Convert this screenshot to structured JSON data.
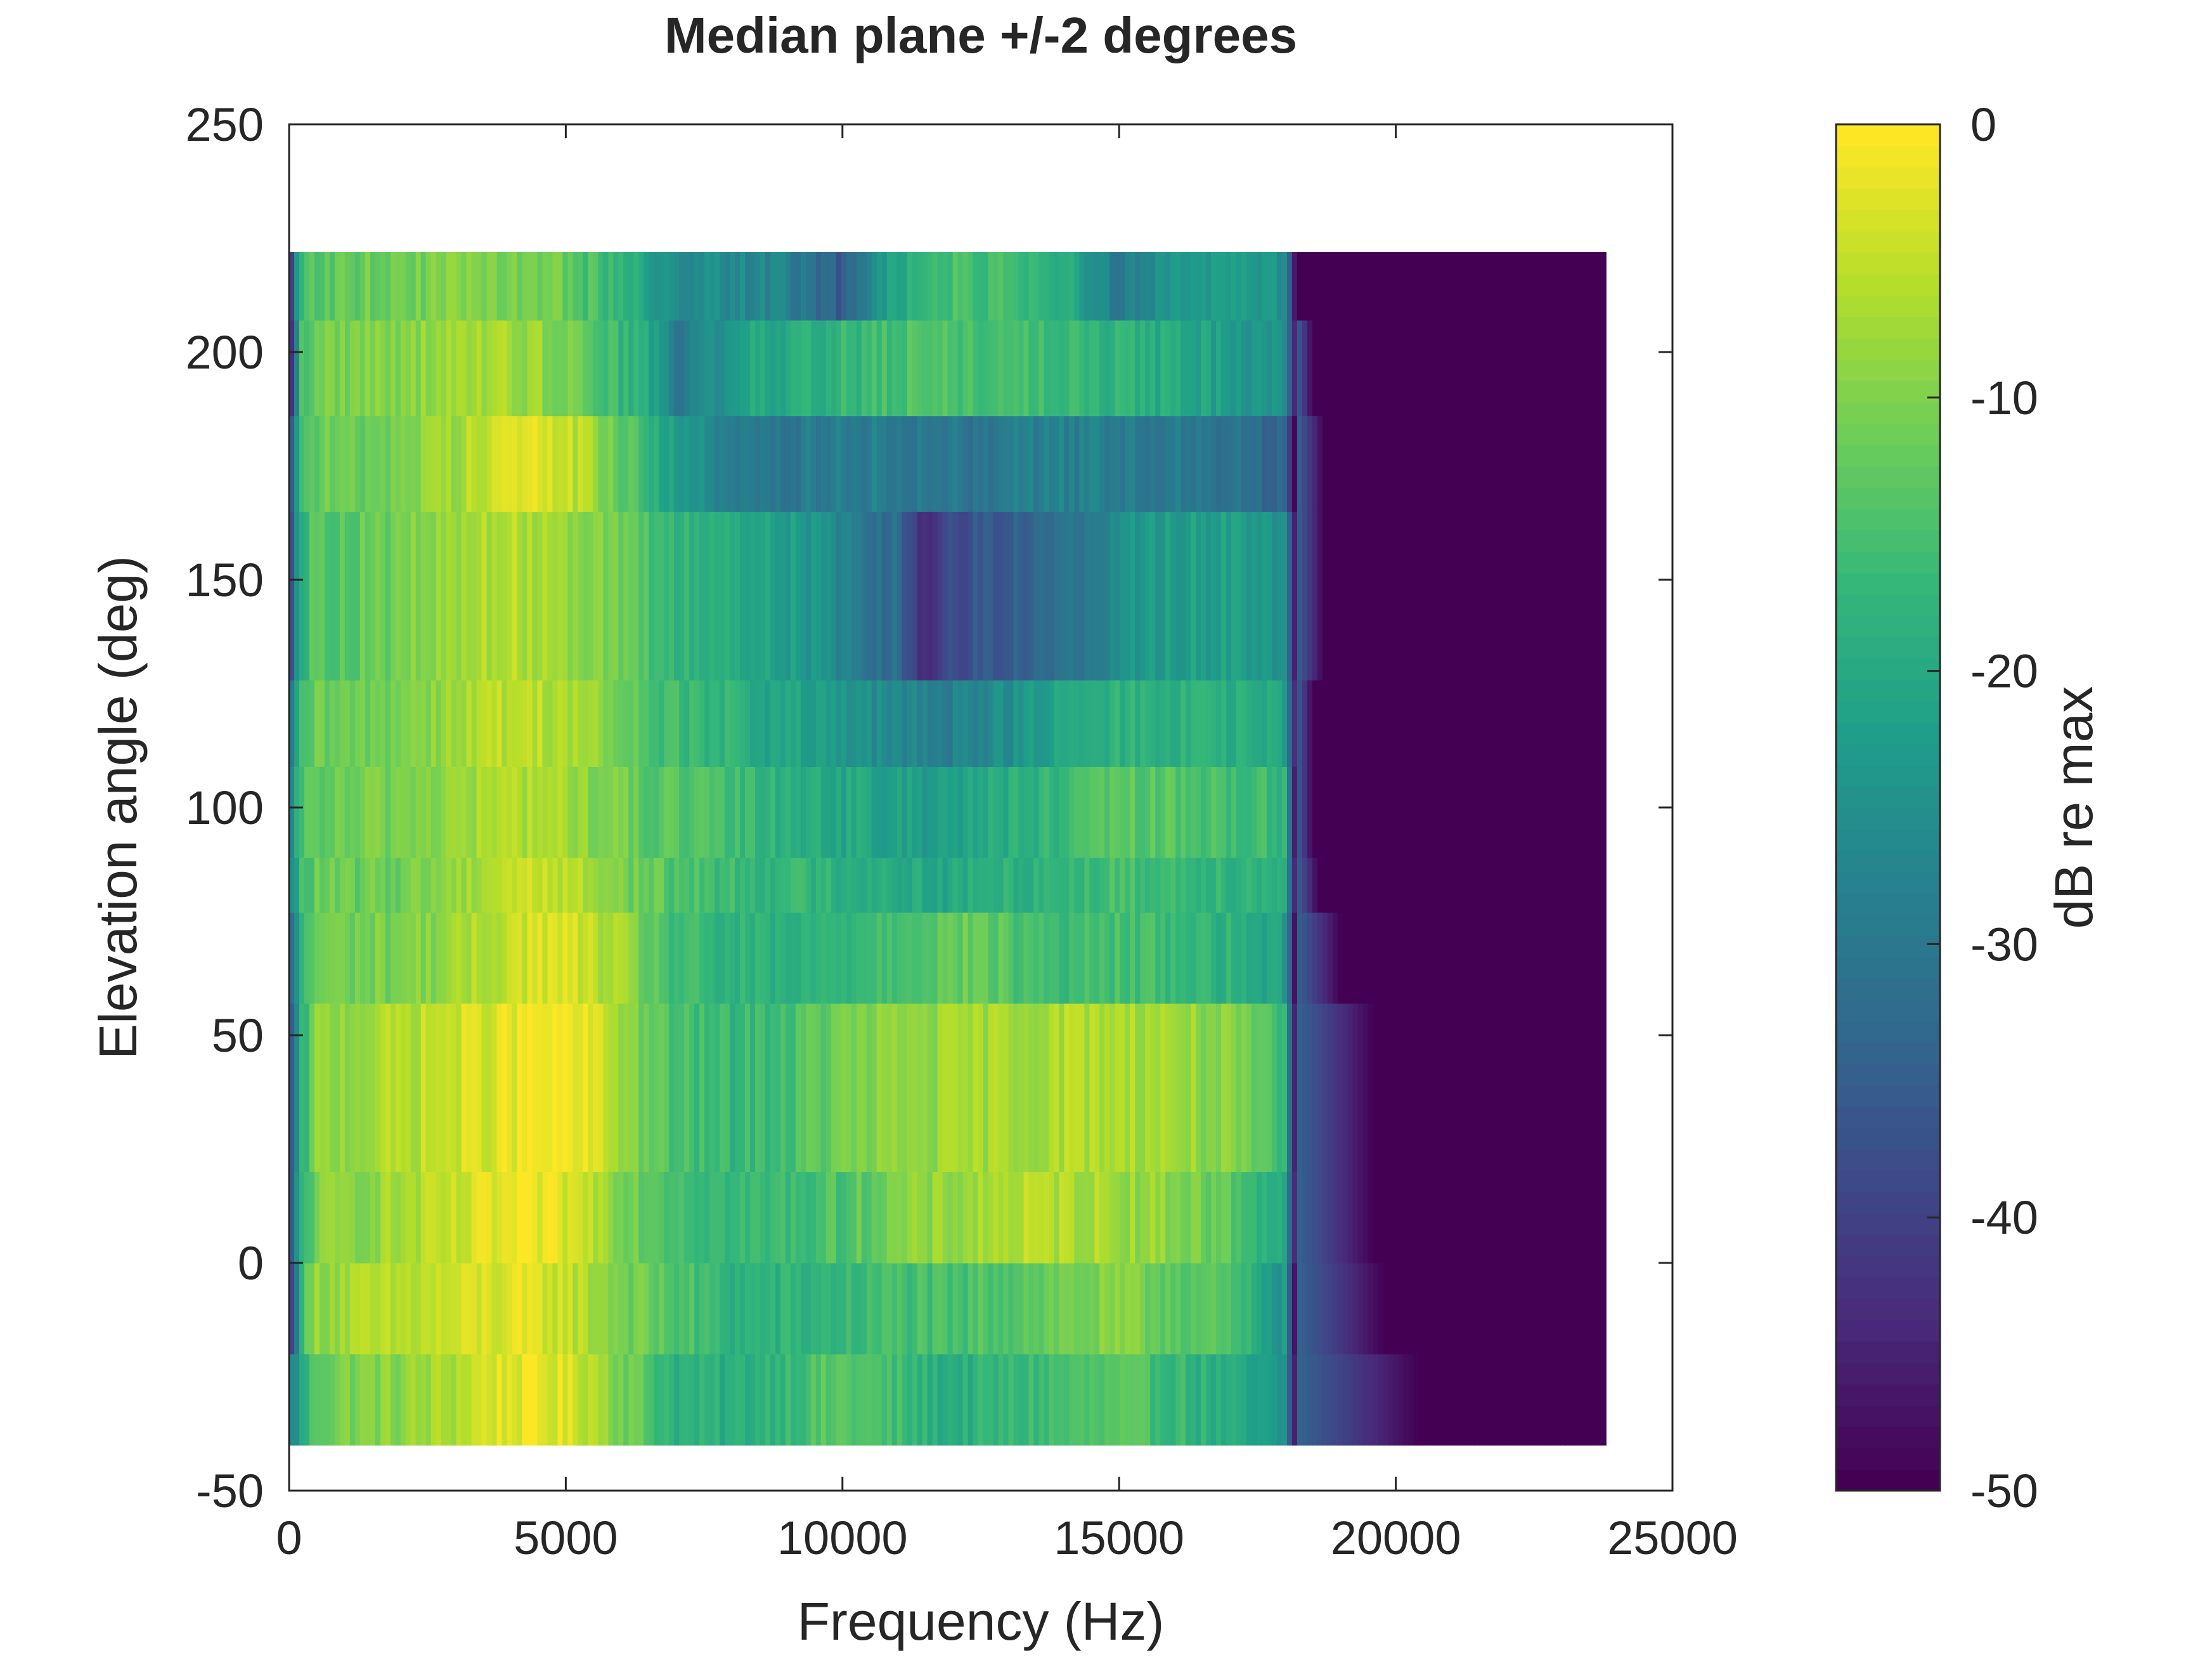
{
  "chart_data": {
    "type": "heatmap",
    "title": "Median plane +/-2 degrees",
    "xlabel": "Frequency (Hz)",
    "ylabel": "Elevation angle (deg)",
    "xlim": [
      0,
      25000
    ],
    "ylim": [
      -50,
      250
    ],
    "xticks": [
      0,
      5000,
      10000,
      15000,
      20000,
      25000
    ],
    "xtick_labels": [
      "0",
      "5000",
      "10000",
      "15000",
      "20000",
      "25000"
    ],
    "yticks": [
      -50,
      0,
      50,
      100,
      150,
      200,
      250
    ],
    "ytick_labels": [
      "-50",
      "0",
      "50",
      "100",
      "150",
      "200",
      "250"
    ],
    "colormap": "viridis",
    "colorbar": {
      "label": "dB re max",
      "range": [
        -50,
        0
      ],
      "ticks": [
        0,
        -10,
        -20,
        -30,
        -40,
        -50
      ],
      "tick_labels": [
        "0",
        "-10",
        "-20",
        "-30",
        "-40",
        "-50"
      ],
      "levels": 64
    },
    "colorbar_colors": [
      "#440154",
      "#482878",
      "#3e4989",
      "#31688e",
      "#26828e",
      "#1f9e89",
      "#35b779",
      "#6ece58",
      "#b5de2b",
      "#fde725"
    ],
    "elevation_rows": [
      {
        "y0": -40,
        "y1": -20,
        "cutoff_hz": 20400
      },
      {
        "y0": -20,
        "y1": 0,
        "cutoff_hz": 19800
      },
      {
        "y0": 0,
        "y1": 20,
        "cutoff_hz": 19600
      },
      {
        "y0": 20,
        "y1": 57,
        "cutoff_hz": 19600
      },
      {
        "y0": 57,
        "y1": 77,
        "cutoff_hz": 19000
      },
      {
        "y0": 77,
        "y1": 89,
        "cutoff_hz": 18600
      },
      {
        "y0": 89,
        "y1": 109,
        "cutoff_hz": 18500
      },
      {
        "y0": 109,
        "y1": 128,
        "cutoff_hz": 18500
      },
      {
        "y0": 128,
        "y1": 165,
        "cutoff_hz": 18700
      },
      {
        "y0": 165,
        "y1": 186,
        "cutoff_hz": 18700
      },
      {
        "y0": 186,
        "y1": 207,
        "cutoff_hz": 18500
      },
      {
        "y0": 207,
        "y1": 222,
        "cutoff_hz": 18200
      }
    ],
    "data_freq_max": 23800,
    "spectral_profile_db": {
      "freq_hz": [
        0,
        200,
        500,
        1000,
        2000,
        3000,
        3500,
        4000,
        4500,
        5000,
        5500,
        6000,
        6500,
        7000,
        8000,
        9000,
        10000,
        11000,
        11500,
        12000,
        12500,
        13000,
        14000,
        15000,
        16000,
        17000,
        18000,
        18200
      ],
      "elevation_rows": [
        [
          -28,
          -22,
          -12,
          -10,
          -9,
          -6,
          -3,
          -2,
          -2,
          -3,
          -5,
          -10,
          -14,
          -18,
          -19,
          -16,
          -13,
          -16,
          -18,
          -19,
          -18,
          -17,
          -15,
          -14,
          -16,
          -20,
          -25,
          -50
        ],
        [
          -48,
          -17,
          -8,
          -7,
          -6,
          -4,
          -3,
          -3,
          -3,
          -4,
          -7,
          -10,
          -12,
          -14,
          -18,
          -18,
          -17,
          -15,
          -15,
          -16,
          -14,
          -13,
          -11,
          -10,
          -12,
          -15,
          -24,
          -50
        ],
        [
          -42,
          -19,
          -10,
          -9,
          -7,
          -5,
          -3,
          -2,
          -2,
          -3,
          -5,
          -9,
          -12,
          -14,
          -17,
          -16,
          -14,
          -10,
          -9,
          -8,
          -7,
          -6,
          -6,
          -7,
          -9,
          -13,
          -20,
          -50
        ],
        [
          -42,
          -20,
          -9,
          -8,
          -6,
          -4,
          -3,
          -2,
          -1,
          -1,
          -3,
          -7,
          -12,
          -15,
          -17,
          -15,
          -11,
          -9,
          -8,
          -8,
          -7,
          -7,
          -6,
          -6,
          -7,
          -10,
          -17,
          -50
        ],
        [
          -38,
          -18,
          -11,
          -11,
          -10,
          -8,
          -6,
          -4,
          -3,
          -3,
          -5,
          -8,
          -12,
          -16,
          -18,
          -19,
          -17,
          -14,
          -13,
          -12,
          -12,
          -14,
          -16,
          -15,
          -16,
          -18,
          -22,
          -50
        ],
        [
          -30,
          -16,
          -12,
          -12,
          -11,
          -8,
          -6,
          -4,
          -4,
          -5,
          -7,
          -10,
          -12,
          -14,
          -16,
          -17,
          -18,
          -19,
          -20,
          -20,
          -19,
          -18,
          -17,
          -15,
          -16,
          -17,
          -18,
          -50
        ],
        [
          -33,
          -15,
          -12,
          -12,
          -10,
          -8,
          -7,
          -6,
          -6,
          -7,
          -9,
          -11,
          -13,
          -14,
          -16,
          -18,
          -20,
          -22,
          -22,
          -21,
          -20,
          -19,
          -17,
          -13,
          -14,
          -15,
          -17,
          -50
        ],
        [
          -36,
          -16,
          -12,
          -12,
          -10,
          -7,
          -6,
          -5,
          -5,
          -6,
          -8,
          -12,
          -14,
          -16,
          -18,
          -21,
          -24,
          -27,
          -28,
          -28,
          -26,
          -25,
          -21,
          -18,
          -18,
          -19,
          -21,
          -50
        ],
        [
          -40,
          -18,
          -13,
          -13,
          -11,
          -8,
          -6,
          -6,
          -6,
          -7,
          -9,
          -12,
          -15,
          -17,
          -19,
          -22,
          -27,
          -33,
          -44,
          -38,
          -36,
          -35,
          -32,
          -25,
          -22,
          -22,
          -24,
          -50
        ],
        [
          -38,
          -16,
          -12,
          -12,
          -10,
          -7,
          -4,
          -2,
          -3,
          -4,
          -7,
          -13,
          -17,
          -22,
          -30,
          -30,
          -28,
          -29,
          -30,
          -30,
          -30,
          -28,
          -28,
          -29,
          -29,
          -30,
          -35,
          -50
        ],
        [
          -48,
          -16,
          -11,
          -10,
          -9,
          -8,
          -7,
          -7,
          -8,
          -10,
          -13,
          -17,
          -20,
          -30,
          -22,
          -19,
          -17,
          -15,
          -14,
          -14,
          -15,
          -15,
          -16,
          -18,
          -20,
          -22,
          -24,
          -50
        ],
        [
          -45,
          -17,
          -13,
          -12,
          -11,
          -10,
          -10,
          -10,
          -11,
          -12,
          -15,
          -18,
          -21,
          -25,
          -26,
          -28,
          -36,
          -20,
          -16,
          -15,
          -15,
          -16,
          -18,
          -30,
          -24,
          -22,
          -25,
          -50
        ]
      ]
    }
  }
}
